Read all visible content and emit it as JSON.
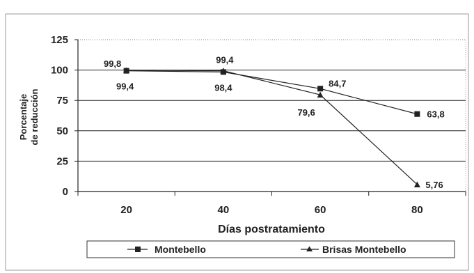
{
  "chart_data": {
    "type": "line",
    "x": [
      20,
      40,
      60,
      80
    ],
    "xlabel": "Días postratamiento",
    "ylabel": [
      "Porcentaje",
      "de reducción"
    ],
    "ylim": [
      0,
      125
    ],
    "yticks": [
      0,
      25,
      50,
      75,
      100,
      125
    ],
    "grid": true,
    "legend_position": "bottom",
    "series": [
      {
        "name": "Montebello",
        "marker": "square",
        "values": [
          99.4,
          98.4,
          84.7,
          63.8
        ],
        "labels": [
          "99,4",
          "98,4",
          "84,7",
          "63,8"
        ],
        "color": "#222222"
      },
      {
        "name": "Brisas Montebello",
        "marker": "triangle",
        "values": [
          99.8,
          99.4,
          79.6,
          5.76
        ],
        "labels": [
          "99,8",
          "99,4",
          "79,6",
          "5,76"
        ],
        "color": "#222222"
      }
    ]
  }
}
